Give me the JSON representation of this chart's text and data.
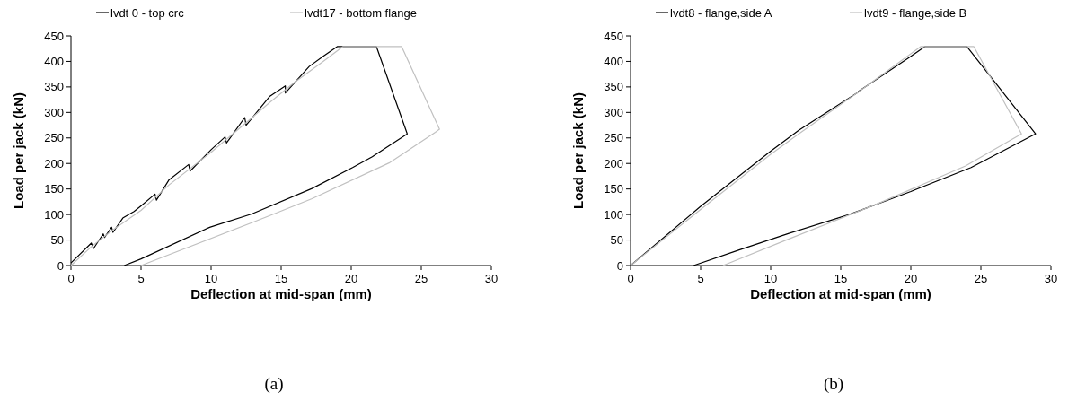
{
  "chart_data": [
    {
      "type": "line",
      "xlabel": "Deflection at mid-span (mm)",
      "ylabel": "Load per jack (kN)",
      "xlim": [
        0,
        30
      ],
      "xticks": [
        0,
        5,
        10,
        15,
        20,
        25,
        30
      ],
      "ylim": [
        0,
        450
      ],
      "yticks": [
        0,
        50,
        100,
        150,
        200,
        250,
        300,
        350,
        400,
        450
      ],
      "grid": false,
      "legend": "top",
      "annotations": [
        "(a)"
      ],
      "series": [
        {
          "name": "lvdt 0 - top crc",
          "color": "#000000",
          "x": [
            0,
            1.45,
            1.55,
            1.6,
            2.3,
            2.4,
            2.9,
            3.0,
            3.7,
            4.5,
            5.0,
            6.0,
            6.1,
            7.0,
            8.4,
            8.5,
            10.0,
            11.0,
            11.1,
            12.4,
            12.5,
            14.2,
            15.3,
            15.3,
            17.0,
            18.0,
            19.0,
            21.8,
            24.0,
            21.5,
            20.1,
            17.2,
            12.9,
            9.9,
            5.0,
            3.8
          ],
          "values": [
            5,
            44,
            38,
            33,
            62,
            55,
            75,
            65,
            93,
            106,
            117,
            140,
            128,
            168,
            198,
            185,
            227,
            252,
            240,
            290,
            275,
            332,
            352,
            338,
            390,
            410,
            429,
            429,
            258,
            213,
            192,
            151,
            101,
            75,
            13,
            0
          ]
        },
        {
          "name": "lvdt17 - bottom flange",
          "color": "#c0c0c0",
          "x": [
            0,
            1.5,
            3.0,
            5.0,
            7.0,
            10.0,
            12.5,
            14.2,
            16.0,
            18.0,
            19.4,
            23.6,
            26.3,
            26.0,
            22.7,
            17.2,
            14.2,
            12.9,
            5.0
          ],
          "values": [
            0,
            38,
            70,
            108,
            158,
            222,
            280,
            320,
            360,
            400,
            429,
            429,
            267,
            261,
            201,
            131,
            98,
            84,
            0
          ]
        }
      ]
    },
    {
      "type": "line",
      "xlabel": "Deflection at mid-span (mm)",
      "ylabel": "Load per jack (kN)",
      "xlim": [
        0,
        30
      ],
      "xticks": [
        0,
        5,
        10,
        15,
        20,
        25,
        30
      ],
      "ylim": [
        0,
        450
      ],
      "yticks": [
        0,
        50,
        100,
        150,
        200,
        250,
        300,
        350,
        400,
        450
      ],
      "grid": false,
      "legend": "top",
      "annotations": [
        "(b)"
      ],
      "series": [
        {
          "name": "lvdt8 - flange,side A",
          "color": "#000000",
          "x": [
            0,
            5.0,
            10.0,
            12.0,
            16.2,
            16.3,
            19.8,
            21.0,
            24.0,
            28.9,
            24.3,
            20.0,
            15.6,
            11.3,
            7.7,
            4.5
          ],
          "values": [
            0,
            116,
            224,
            265,
            339,
            342,
            406,
            429,
            429,
            258,
            192,
            145,
            100,
            63,
            30,
            0
          ]
        },
        {
          "name": "lvdt9 - flange,side B",
          "color": "#c0c0c0",
          "x": [
            0,
            5.0,
            10.0,
            12.0,
            16.0,
            20.7,
            24.5,
            27.9,
            23.9,
            17.7,
            11.3,
            6.6
          ],
          "values": [
            0,
            110,
            218,
            258,
            335,
            429,
            429,
            258,
            195,
            122,
            52,
            0
          ]
        }
      ]
    }
  ]
}
